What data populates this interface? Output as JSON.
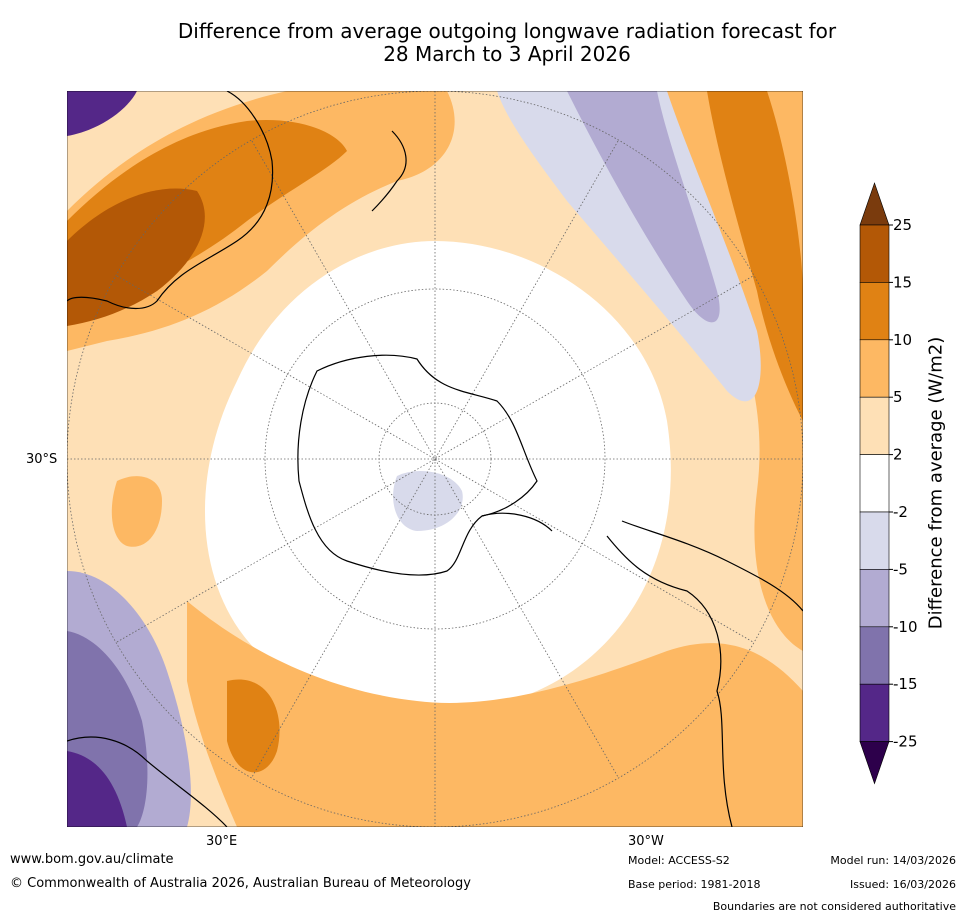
{
  "title": {
    "line1": "Difference from average outgoing longwave radiation forecast for",
    "line2": "28 March to 3 April 2026"
  },
  "map": {
    "projection": "South polar stereographic",
    "lat_label": "30°S",
    "lon_labels": [
      "30°E",
      "30°W"
    ]
  },
  "colorbar": {
    "label": "Difference from average (W/m2)",
    "ticks": [
      "25",
      "15",
      "10",
      "5",
      "2",
      "-2",
      "-5",
      "-10",
      "-15",
      "-25"
    ],
    "colors": [
      "#7a3b0d",
      "#b35806",
      "#e08214",
      "#fdb863",
      "#fee0b6",
      "#ffffff",
      "#d8daeb",
      "#b2abd2",
      "#8073ac",
      "#542788",
      "#2d004b"
    ]
  },
  "footer": {
    "website": "www.bom.gov.au/climate",
    "copyright": "© Commonwealth of Australia 2026, Australian Bureau of Meteorology",
    "model": "Model: ACCESS-S2",
    "model_run": "Model run: 14/03/2026",
    "base_period": "Base period: 1981-2018",
    "issued": "Issued: 16/03/2026",
    "disclaimer": "Boundaries are not considered authoritative"
  }
}
